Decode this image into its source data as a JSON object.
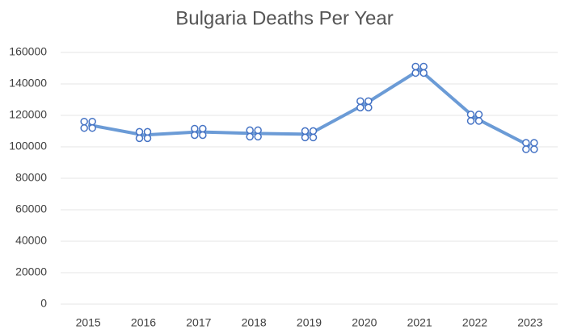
{
  "chart_data": {
    "type": "line",
    "title": "Bulgaria Deaths Per Year",
    "categories": [
      "2015",
      "2016",
      "2017",
      "2018",
      "2019",
      "2020",
      "2021",
      "2022",
      "2023"
    ],
    "series": [
      {
        "color": "#6b9bd6",
        "values": [
          114000,
          107500,
          109500,
          108500,
          108000,
          127000,
          149000,
          118500,
          100500
        ]
      }
    ],
    "ylim": [
      0,
      160000
    ],
    "yticks": [
      0,
      20000,
      40000,
      60000,
      80000,
      100000,
      120000,
      140000,
      160000
    ],
    "grid": true
  }
}
